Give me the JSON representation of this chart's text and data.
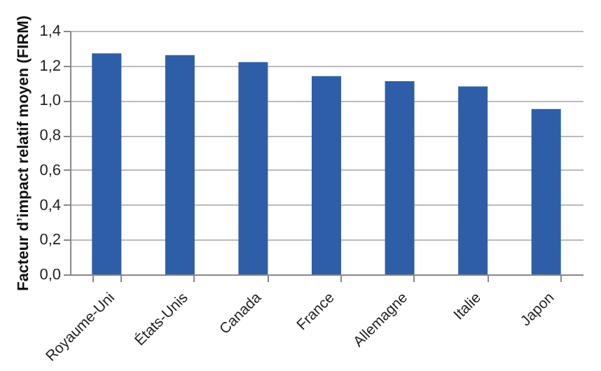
{
  "chart_data": {
    "type": "bar",
    "ylabel": "Facteur d’impact relatif moyen (FIRM)",
    "categories": [
      "Royaume-Uni",
      "États-Unis",
      "Canada",
      "France",
      "Allemagne",
      "Italie",
      "Japon"
    ],
    "values": [
      1.27,
      1.26,
      1.22,
      1.14,
      1.11,
      1.08,
      0.95
    ],
    "color": "#2e5ea8",
    "ylim": [
      0,
      1.4
    ],
    "yticks": [
      {
        "value": 0,
        "label": "0,0"
      },
      {
        "value": 0.2,
        "label": "0,2"
      },
      {
        "value": 0.4,
        "label": "0,4"
      },
      {
        "value": 0.6,
        "label": "0,6"
      },
      {
        "value": 0.8,
        "label": "0,8"
      },
      {
        "value": 1.0,
        "label": "1,0"
      },
      {
        "value": 1.2,
        "label": "1,2"
      },
      {
        "value": 1.4,
        "label": "1,4"
      }
    ],
    "grid": "y"
  }
}
